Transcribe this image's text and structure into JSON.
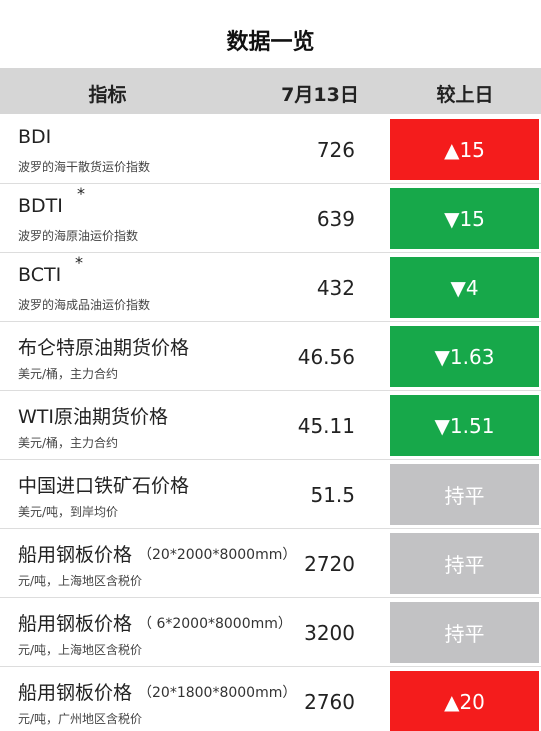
{
  "title": "数据一览",
  "table": {
    "header": [
      "指标",
      "7月13日",
      "较上日"
    ],
    "rows": [
      {
        "name": "BDI",
        "sub": "波罗的海干散货运价指数",
        "value": "726",
        "change": "▲15",
        "color": "#f41c1c"
      },
      {
        "name": "BDTI",
        "note": "*",
        "sub": "波罗的海原油运价指数",
        "value": "639",
        "change": "▼15",
        "color": "#17a84a"
      },
      {
        "name": "BCTI",
        "note": "*",
        "sub": "波罗的海成品油运价指数",
        "value": "432",
        "change": "▼4",
        "color": "#17a84a"
      },
      {
        "name": "布仑特原油期货价格",
        "sub": "美元/桶，主力合约",
        "value": "46.56",
        "change": "▼1.63",
        "color": "#17a84a"
      },
      {
        "name": "WTI原油期货价格",
        "sub": "美元/桶，主力合约",
        "value": "45.11",
        "change": "▼1.51",
        "color": "#17a84a"
      },
      {
        "name": "中国进口铁矿石价格",
        "sub": "美元/吨，到岸均价",
        "value": "51.5",
        "change": "持平",
        "color": "#c2c2c4"
      },
      {
        "name": "船用钢板价格",
        "spec": "（20*2000*8000mm）",
        "sub": "元/吨，上海地区含税价",
        "value": "2720",
        "change": "持平",
        "color": "#c2c2c4"
      },
      {
        "name": "船用钢板价格",
        "spec": "（ 6*2000*8000mm）",
        "sub": "元/吨，上海地区含税价",
        "value": "3200",
        "change": "持平",
        "color": "#c2c2c4"
      },
      {
        "name": "船用钢板价格",
        "spec": "（20*1800*8000mm）",
        "sub": "元/吨，广州地区含税价",
        "value": "2760",
        "change": "▲20",
        "color": "#f41c1c"
      }
    ]
  }
}
